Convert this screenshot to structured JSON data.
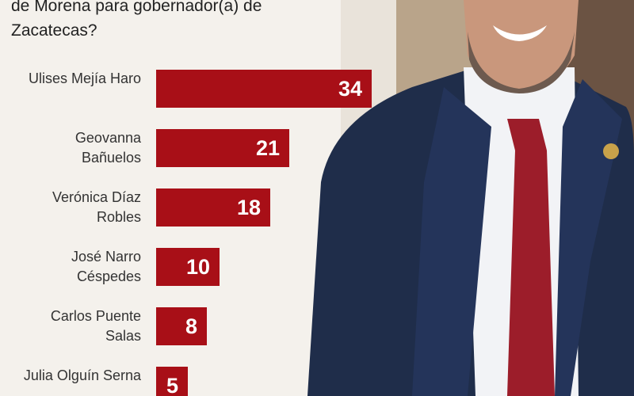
{
  "chart_data": {
    "type": "bar",
    "orientation": "horizontal",
    "title": "de Morena para gobernador(a) de Zacatecas?",
    "categories": [
      "Ulises Mejía Haro",
      "Geovanna Bañuelos",
      "Verónica Díaz Robles",
      "José Narro Céspedes",
      "Carlos Puente Salas",
      "Julia Olguín Serna"
    ],
    "values": [
      34,
      21,
      18,
      10,
      8,
      5
    ],
    "color": "#a80f17"
  }
}
